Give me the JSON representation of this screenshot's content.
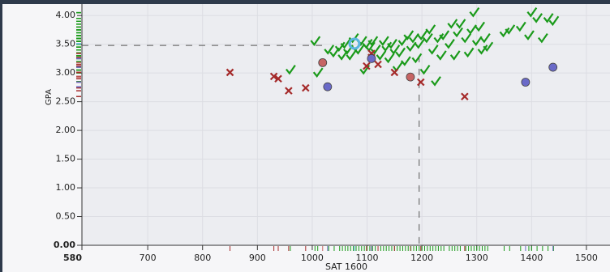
{
  "chart_data": {
    "type": "scatter",
    "x_label": "SAT 1600",
    "y_label": "GPA",
    "xlim": [
      580,
      1543
    ],
    "ylim": [
      0,
      4.2
    ],
    "xticks": [
      {
        "value": 580,
        "label": "580"
      },
      700,
      800,
      900,
      1000,
      1100,
      1200,
      1300,
      1400,
      1500
    ],
    "yticks": [
      {
        "value": 0,
        "label": "0.00"
      },
      {
        "value": 0.5,
        "label": "0.50"
      },
      {
        "value": 1,
        "label": "1.00"
      },
      {
        "value": 1.5,
        "label": "1.50"
      },
      {
        "value": 2,
        "label": "2.00"
      },
      {
        "value": 2.5,
        "label": "2.50"
      },
      {
        "value": 3,
        "label": "3.00"
      },
      {
        "value": 3.5,
        "label": "3.50"
      },
      {
        "value": 4,
        "label": "4.00"
      }
    ],
    "grid": true,
    "ref_x": 1195,
    "ref_y": 3.48,
    "series": [
      {
        "marker": "check",
        "color": "#1a9a1a",
        "x": [
          960,
          1005,
          1010,
          1030,
          1040,
          1050,
          1055,
          1060,
          1065,
          1070,
          1075,
          1080,
          1085,
          1090,
          1095,
          1100,
          1105,
          1110,
          1115,
          1125,
          1130,
          1135,
          1140,
          1145,
          1150,
          1155,
          1160,
          1165,
          1170,
          1175,
          1180,
          1185,
          1190,
          1195,
          1200,
          1205,
          1210,
          1215,
          1220,
          1225,
          1230,
          1235,
          1240,
          1250,
          1255,
          1260,
          1265,
          1270,
          1280,
          1285,
          1290,
          1295,
          1300,
          1305,
          1310,
          1315,
          1320,
          1350,
          1360,
          1380,
          1395,
          1400,
          1410,
          1420,
          1430,
          1440
        ],
        "values": [
          3.05,
          3.55,
          3.0,
          3.4,
          3.35,
          3.45,
          3.3,
          3.5,
          3.4,
          3.3,
          3.6,
          3.45,
          3.4,
          3.55,
          3.05,
          3.5,
          3.45,
          3.55,
          3.4,
          3.3,
          3.55,
          3.45,
          3.25,
          3.5,
          3.4,
          3.1,
          3.35,
          3.55,
          3.2,
          3.65,
          3.45,
          3.6,
          3.25,
          3.5,
          3.65,
          3.05,
          3.6,
          3.75,
          3.4,
          2.85,
          3.6,
          3.3,
          3.65,
          3.5,
          3.85,
          3.3,
          3.7,
          3.85,
          3.6,
          3.35,
          3.75,
          4.05,
          3.55,
          3.8,
          3.4,
          3.6,
          3.45,
          3.7,
          3.75,
          3.8,
          3.65,
          4.05,
          3.95,
          3.6,
          3.95,
          3.9
        ]
      },
      {
        "marker": "cross",
        "color": "#a52a2a",
        "x": [
          850,
          930,
          938,
          957,
          988,
          1099,
          1108,
          1108,
          1120,
          1150,
          1198,
          1278
        ],
        "values": [
          3.01,
          2.94,
          2.9,
          2.69,
          2.74,
          3.12,
          3.34,
          3.27,
          3.15,
          3.01,
          2.84,
          2.59
        ]
      },
      {
        "marker": "circle",
        "color": "#c66464",
        "x": [
          1019,
          1179
        ],
        "values": [
          3.18,
          2.93
        ]
      },
      {
        "marker": "circle",
        "color": "#6a6ac8",
        "x": [
          1028,
          1108,
          1389,
          1439
        ],
        "values": [
          2.76,
          3.25,
          2.84,
          3.1
        ]
      },
      {
        "marker": "ring",
        "color": "#5ab4e0",
        "x": [
          1077
        ],
        "values": [
          3.51
        ]
      }
    ]
  }
}
